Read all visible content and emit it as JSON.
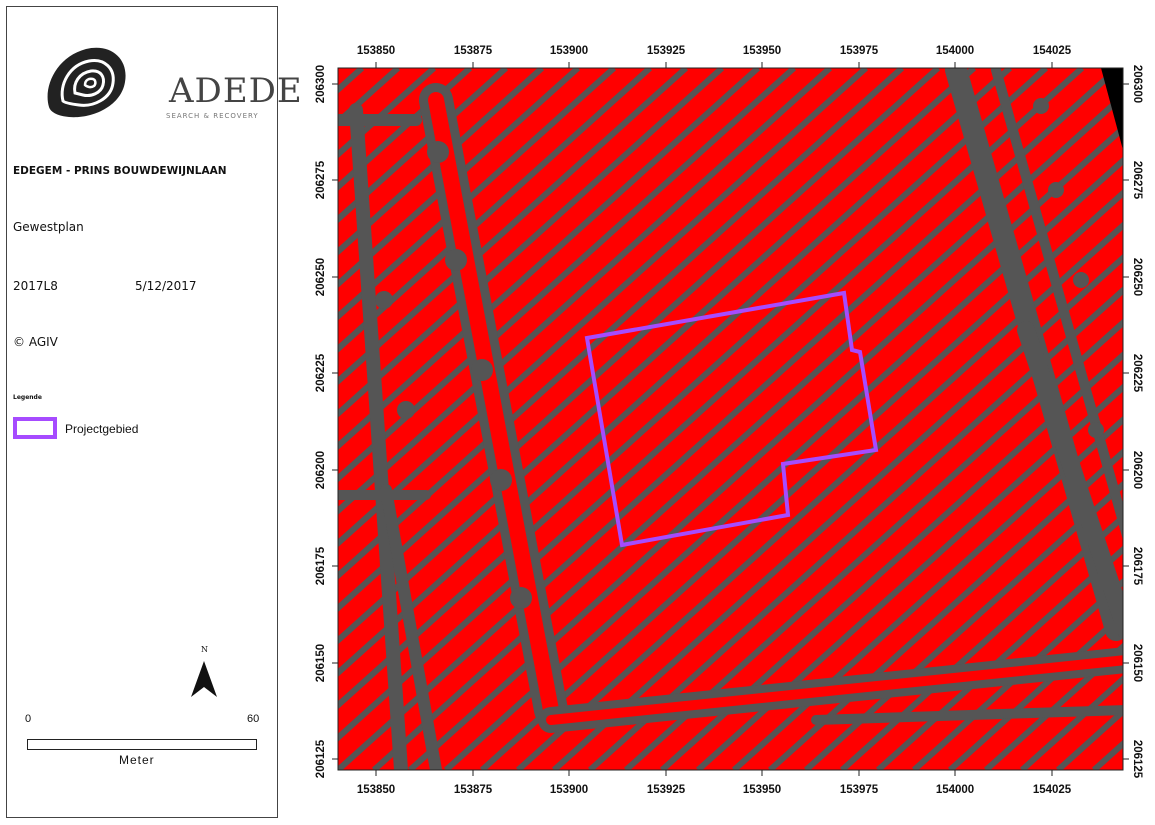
{
  "logo": {
    "name": "ADEDE",
    "tagline": "SEARCH & RECOVERY"
  },
  "project": {
    "title": "EDEGEM - PRINS BOUWDEWIJNLAAN",
    "map_type": "Gewestplan",
    "code": "2017L8",
    "date": "5/12/2017",
    "copyright": "© AGIV"
  },
  "legend": {
    "title": "Legende",
    "items": [
      {
        "label": "Projectgebied",
        "color": "#a64bff"
      }
    ]
  },
  "north_arrow": {
    "label": "N"
  },
  "scale_bar": {
    "start": "0",
    "end": "60",
    "unit": "Meter"
  },
  "map": {
    "x_ticks": [
      "153850",
      "153875",
      "153900",
      "153925",
      "153950",
      "153975",
      "154000",
      "154025"
    ],
    "y_ticks": [
      "206300",
      "206275",
      "206250",
      "206225",
      "206200",
      "206175",
      "206150",
      "206125"
    ],
    "colors": {
      "zone": "#ff0000",
      "hatch": "#555555",
      "boundary": "#a64bff"
    }
  }
}
